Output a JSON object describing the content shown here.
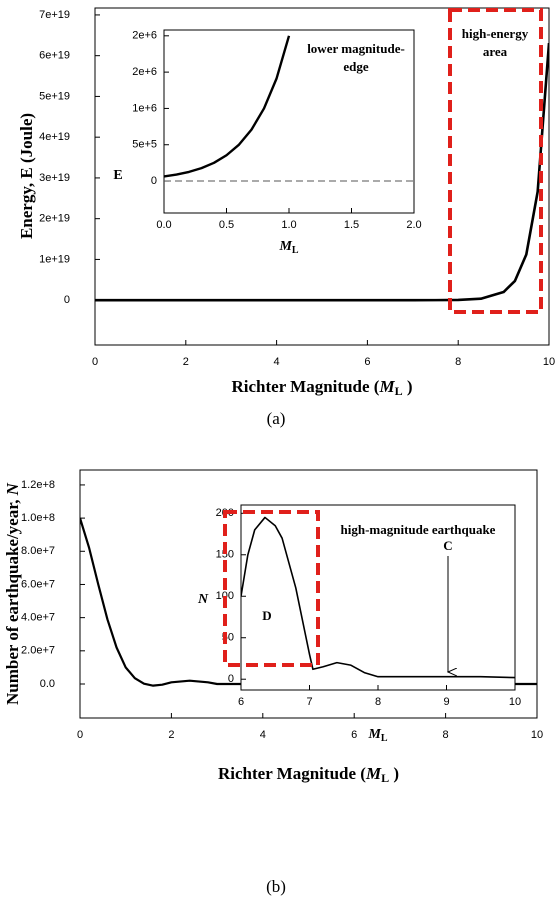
{
  "chart_data": [
    {
      "type": "line",
      "caption": "(a)",
      "xlabel": [
        "Richter Magnitude (",
        "M",
        "L",
        " )"
      ],
      "ylabel": [
        "Energy, E (Joule)"
      ],
      "x": [
        0,
        1,
        2,
        3,
        4,
        5,
        6,
        7,
        7.5,
        8,
        8.5,
        9,
        9.25,
        9.5,
        9.75,
        10
      ],
      "values": [
        63100,
        2000000,
        63100000,
        2000000000,
        63100000000,
        2000000000000,
        63100000000000,
        2000000000000000,
        11200000000000000,
        63100000000000000,
        355000000000000000,
        2000000000000000000,
        4730000000000000000,
        11200000000000000000,
        26600000000000000000,
        63100000000000000000
      ],
      "color": "#000000",
      "xlim": [
        0,
        10
      ],
      "xticks": [
        0,
        2,
        4,
        6,
        8,
        10
      ],
      "ylim": [
        -1.1e+19,
        7.17e+19
      ],
      "yticks": [
        0,
        {
          "value": 1e+19,
          "label": "1e+19"
        },
        {
          "value": 2e+19,
          "label": "2e+19"
        },
        {
          "value": 3e+19,
          "label": "3e+19"
        },
        {
          "value": 4e+19,
          "label": "4e+19"
        },
        {
          "value": 5e+19,
          "label": "5e+19"
        },
        {
          "value": 6e+19,
          "label": "6e+19"
        },
        {
          "value": 7e+19,
          "label": "7e+19"
        }
      ],
      "annotations": [
        "high-energy",
        "area"
      ]
    },
    {
      "type": "line",
      "xlabel": [
        "M",
        "L"
      ],
      "ylabel": [
        "E"
      ],
      "x": [
        0,
        0.1,
        0.2,
        0.3,
        0.4,
        0.5,
        0.6,
        0.7,
        0.8,
        0.9,
        1.0
      ],
      "values": [
        63100,
        89100,
        126000,
        178000,
        251000,
        355000,
        501000,
        708000,
        1000000,
        1410000,
        2000000
      ],
      "color": "#000000",
      "zero_line": true,
      "xlim": [
        0,
        2
      ],
      "xticks": [
        {
          "value": 0,
          "label": "0.0"
        },
        {
          "value": 0.5,
          "label": "0.5"
        },
        {
          "value": 1,
          "label": "1.0"
        },
        {
          "value": 1.5,
          "label": "1.5"
        },
        {
          "value": 2,
          "label": "2.0"
        }
      ],
      "ylim": [
        -440000,
        2080000
      ],
      "yticks": [
        0,
        {
          "value": 500000,
          "label": "5e+5"
        },
        {
          "value": 1000000,
          "label": "1e+6"
        },
        {
          "value": 1500000,
          "label": "2e+6"
        },
        {
          "value": 2000000,
          "label": "2e+6"
        }
      ],
      "annotations": [
        "lower magnitude-",
        "edge"
      ]
    },
    {
      "type": "line",
      "caption": "(b)",
      "xlabel": [
        "Richter Magnitude (",
        "M",
        "L",
        " )"
      ],
      "ylabel": [
        "Number of earthquake/year, ",
        "N"
      ],
      "x": [
        0,
        0.2,
        0.4,
        0.6,
        0.8,
        1.0,
        1.2,
        1.4,
        1.6,
        1.8,
        2.0,
        2.4,
        2.8,
        3.0,
        4,
        6,
        8,
        10
      ],
      "values": [
        100000000,
        82000000,
        60000000,
        39000000,
        22000000,
        10000000,
        3500000,
        200000,
        -1000000,
        -400000,
        1000000,
        2000000,
        1000000,
        0,
        0,
        0,
        0,
        0
      ],
      "color": "#000000",
      "xlim": [
        0,
        10
      ],
      "xticks": [
        0,
        2,
        4,
        6,
        8,
        10
      ],
      "ylim": [
        -20500000,
        129000000
      ],
      "yticks": [
        {
          "value": 0,
          "label": "0.0"
        },
        {
          "value": 20000000,
          "label": "2.0e+7"
        },
        {
          "value": 40000000,
          "label": "4.0e+7"
        },
        {
          "value": 60000000,
          "label": "6.0e+7"
        },
        {
          "value": 80000000,
          "label": "8.0e+7"
        },
        {
          "value": 100000000,
          "label": "1.0e+8"
        },
        {
          "value": 120000000,
          "label": "1.2e+8"
        }
      ]
    },
    {
      "type": "line",
      "xlabel": [
        "M",
        "L"
      ],
      "ylabel": [
        "N"
      ],
      "x": [
        6,
        6.1,
        6.2,
        6.35,
        6.5,
        6.6,
        6.8,
        7.0,
        7.05,
        7.2,
        7.4,
        7.6,
        7.8,
        8.0,
        8.5,
        9,
        9.5,
        10
      ],
      "values": [
        100,
        150,
        180,
        195,
        185,
        170,
        110,
        30,
        12,
        15,
        20,
        17,
        8,
        3,
        3,
        3,
        3,
        2
      ],
      "color": "#000000",
      "xlim": [
        6,
        10
      ],
      "xticks": [
        6,
        7,
        8,
        9,
        10
      ],
      "ylim": [
        -13,
        210
      ],
      "yticks": [
        0,
        50,
        100,
        150,
        200
      ],
      "annotations": [
        "high-magnitude earthquake",
        "D",
        "C"
      ]
    }
  ]
}
